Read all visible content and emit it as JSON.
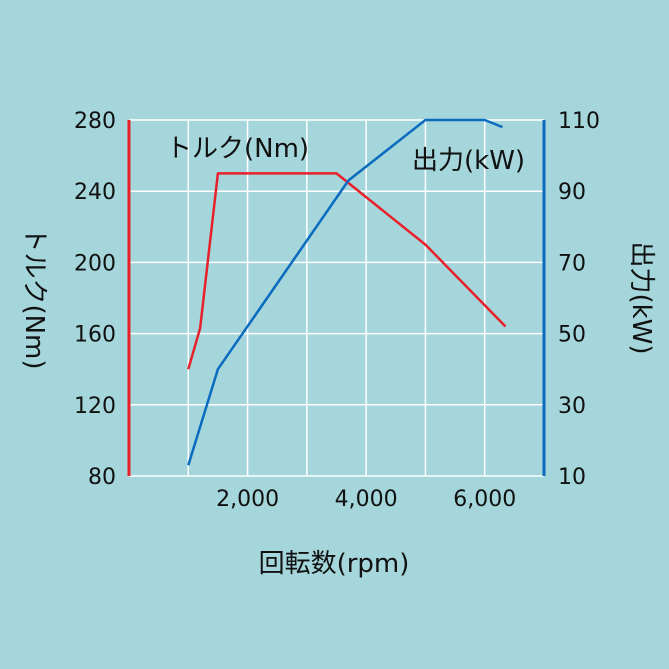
{
  "chart_data": {
    "type": "line",
    "x_ticks": [
      2000,
      4000,
      6000
    ],
    "x_tick_labels": [
      "2,000",
      "4,000",
      "6,000"
    ],
    "xlabel": "回転数(rpm)",
    "xlim": [
      0,
      7000
    ],
    "grid": true,
    "left_axis": {
      "label": "トルク(Nm)",
      "lim": [
        80,
        280
      ],
      "ticks": [
        80,
        120,
        160,
        200,
        240,
        280
      ],
      "color": "#e8202a"
    },
    "right_axis": {
      "label": "出力(kW)",
      "lim": [
        10,
        110
      ],
      "ticks": [
        10,
        30,
        50,
        70,
        90,
        110
      ],
      "color": "#0a6bbf"
    },
    "series": [
      {
        "name": "トルク(Nm)",
        "axis": "left",
        "color": "#e8202a",
        "x": [
          1000,
          1200,
          1500,
          3500,
          5000,
          6350
        ],
        "y": [
          140,
          163,
          250,
          250,
          210,
          164
        ]
      },
      {
        "name": "出力(kW)",
        "axis": "right",
        "color": "#0a6bbf",
        "x": [
          1000,
          1500,
          3700,
          5000,
          6000,
          6300
        ],
        "y": [
          13,
          40,
          93,
          110,
          110,
          108
        ]
      }
    ]
  }
}
